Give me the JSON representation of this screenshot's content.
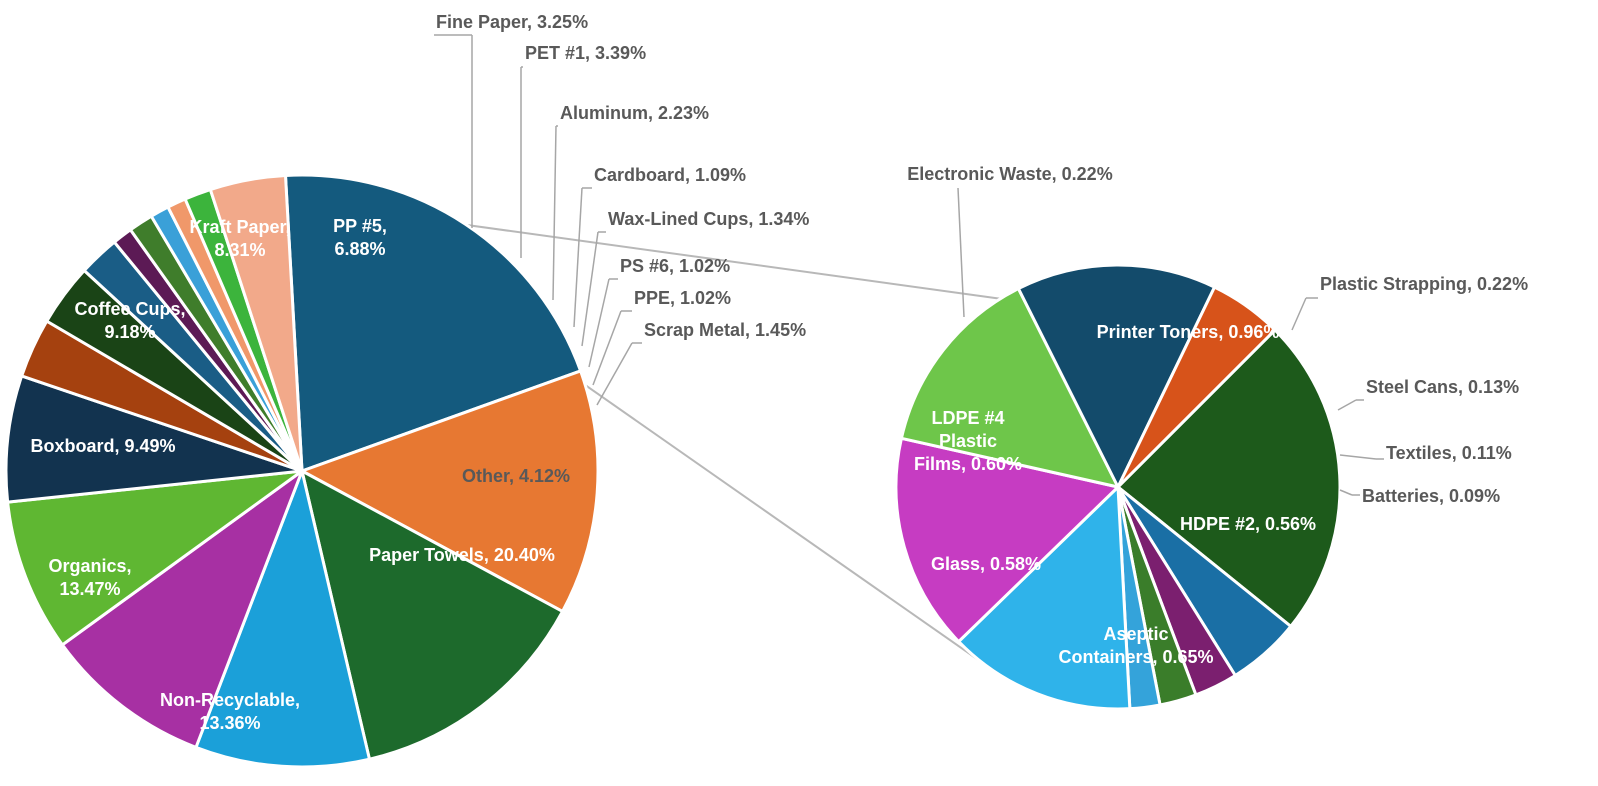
{
  "chart_data": {
    "type": "pie",
    "subtype": "pie-of-pie",
    "title": "",
    "primary": [
      {
        "label": "Paper Towels",
        "value": 20.4,
        "display": "Paper Towels, 20.40%",
        "color": "#145a7e",
        "text_inside": true
      },
      {
        "label": "Non-Recyclable",
        "value": 13.36,
        "display": "Non-Recyclable, 13.36%",
        "color": "#e77832",
        "text_inside": true
      },
      {
        "label": "Organics",
        "value": 13.47,
        "display": "Organics, 13.47%",
        "color": "#1d6a2c",
        "text_inside": true
      },
      {
        "label": "Boxboard",
        "value": 9.49,
        "display": "Boxboard, 9.49%",
        "color": "#1ba0d9",
        "text_inside": true
      },
      {
        "label": "Coffee Cups",
        "value": 9.18,
        "display": "Coffee Cups, 9.18%",
        "color": "#a730a3",
        "text_inside": true
      },
      {
        "label": "Kraft Paper",
        "value": 8.31,
        "display": "Kraft Paper, 8.31%",
        "color": "#5fb732",
        "text_inside": true
      },
      {
        "label": "PP #5",
        "value": 6.88,
        "display": "PP #5, 6.88%",
        "color": "#12334f",
        "text_inside": true
      },
      {
        "label": "Fine Paper",
        "value": 3.25,
        "display": "Fine Paper, 3.25%",
        "color": "#a5410f",
        "text_inside": false
      },
      {
        "label": "PET #1",
        "value": 3.39,
        "display": "PET #1, 3.39%",
        "color": "#1a4416",
        "text_inside": false
      },
      {
        "label": "Aluminum",
        "value": 2.23,
        "display": "Aluminum, 2.23%",
        "color": "#1a5d86",
        "text_inside": false
      },
      {
        "label": "Cardboard",
        "value": 1.09,
        "display": "Cardboard, 1.09%",
        "color": "#5c1a55",
        "text_inside": false
      },
      {
        "label": "Wax-Lined Cups",
        "value": 1.34,
        "display": "Wax-Lined Cups, 1.34%",
        "color": "#3f7d2b",
        "text_inside": false
      },
      {
        "label": "PS #6",
        "value": 1.02,
        "display": "PS #6, 1.02%",
        "color": "#3aa0d8",
        "text_inside": false
      },
      {
        "label": "PPE",
        "value": 1.02,
        "display": "PPE, 1.02%",
        "color": "#f0986a",
        "text_inside": false
      },
      {
        "label": "Scrap Metal",
        "value": 1.45,
        "display": "Scrap Metal, 1.45%",
        "color": "#3cb43c",
        "text_inside": false
      },
      {
        "label": "Other",
        "value": 4.12,
        "display": "Other, 4.12%",
        "color": "#f2a98a",
        "text_inside": true
      }
    ],
    "secondary": [
      {
        "label": "Printer Toners",
        "value": 0.96,
        "display": "Printer Toners, 0.96%",
        "color": "#1d5a1b",
        "text_inside": true
      },
      {
        "label": "Plastic Strapping",
        "value": 0.22,
        "display": "Plastic Strapping, 0.22%",
        "color": "#1a6fa5",
        "text_inside": false
      },
      {
        "label": "Steel Cans",
        "value": 0.13,
        "display": "Steel Cans, 0.13%",
        "color": "#7b1f6f",
        "text_inside": false
      },
      {
        "label": "Textiles",
        "value": 0.11,
        "display": "Textiles, 0.11%",
        "color": "#3a7d2a",
        "text_inside": false
      },
      {
        "label": "Batteries",
        "value": 0.09,
        "display": "Batteries, 0.09%",
        "color": "#34a3da",
        "text_inside": false
      },
      {
        "label": "HDPE #2",
        "value": 0.56,
        "display": "HDPE #2, 0.56%",
        "color": "#2fb3ea",
        "text_inside": true
      },
      {
        "label": "Aseptic Containers",
        "value": 0.65,
        "display": "Aseptic Containers, 0.65%",
        "color": "#c63cc2",
        "text_inside": true
      },
      {
        "label": "Glass",
        "value": 0.58,
        "display": "Glass, 0.58%",
        "color": "#6ec64a",
        "text_inside": true
      },
      {
        "label": "LDPE #4 Plastic Films",
        "value": 0.6,
        "display": "LDPE #4 Plastic Films, 0.60%",
        "color": "#134b6b",
        "text_inside": true
      },
      {
        "label": "Electronic Waste",
        "value": 0.22,
        "display": "Electronic Waste, 0.22%",
        "color": "#d7531a",
        "text_inside": false
      }
    ],
    "legend": "none"
  }
}
